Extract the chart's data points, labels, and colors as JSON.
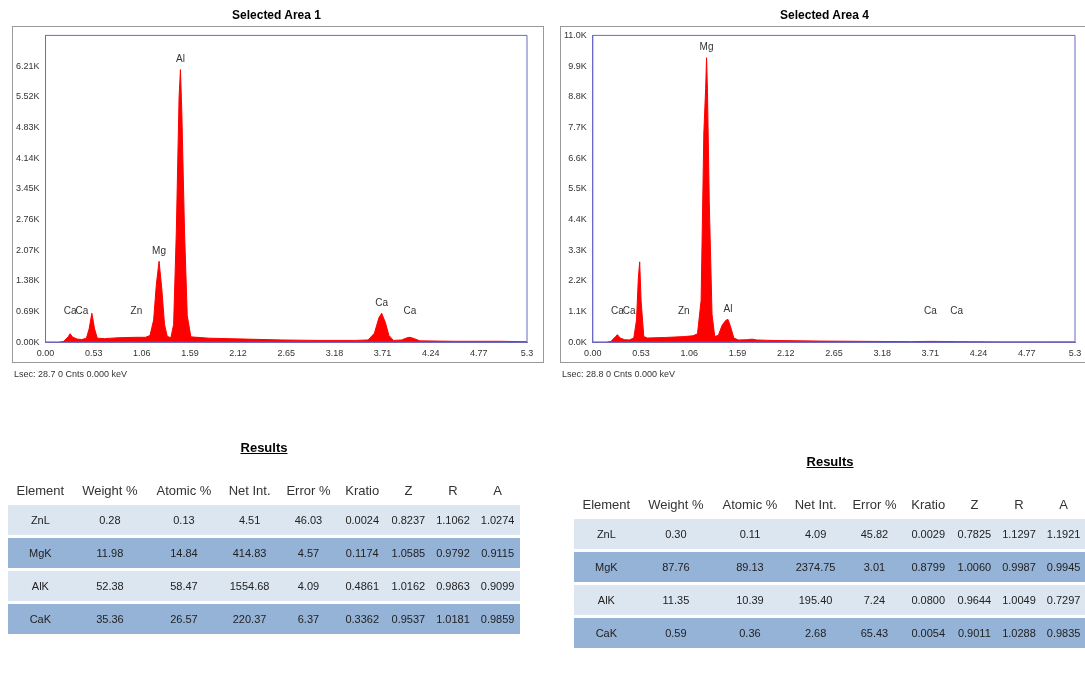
{
  "chart_data": [
    {
      "type": "area",
      "title": "Selected Area 1",
      "color": "#ff0000",
      "x": [
        0,
        0.15,
        0.2,
        0.25,
        0.27,
        0.3,
        0.35,
        0.4,
        0.45,
        0.48,
        0.51,
        0.54,
        0.57,
        0.65,
        0.8,
        1.0,
        1.1,
        1.15,
        1.19,
        1.22,
        1.25,
        1.28,
        1.31,
        1.34,
        1.38,
        1.41,
        1.44,
        1.47,
        1.485,
        1.5,
        1.53,
        1.56,
        1.6,
        1.8,
        2.2,
        2.6,
        3.0,
        3.4,
        3.55,
        3.62,
        3.67,
        3.7,
        3.74,
        3.78,
        3.83,
        3.92,
        3.98,
        4.01,
        4.06,
        4.12,
        4.5,
        5.0,
        5.3
      ],
      "values": [
        0,
        0,
        20,
        120,
        190,
        110,
        70,
        60,
        90,
        300,
        650,
        300,
        90,
        80,
        100,
        110,
        110,
        150,
        500,
        1300,
        1820,
        1200,
        400,
        130,
        100,
        400,
        2500,
        5500,
        6130,
        5200,
        2500,
        600,
        120,
        90,
        70,
        50,
        40,
        40,
        50,
        200,
        550,
        650,
        450,
        150,
        40,
        50,
        100,
        110,
        80,
        30,
        20,
        20,
        10
      ],
      "xlim": [
        0,
        5.3
      ],
      "xticks": [
        {
          "value": 0,
          "label": "0.00"
        },
        {
          "value": 0.53,
          "label": "0.53"
        },
        {
          "value": 1.06,
          "label": "1.06"
        },
        {
          "value": 1.59,
          "label": "1.59"
        },
        {
          "value": 2.12,
          "label": "2.12"
        },
        {
          "value": 2.65,
          "label": "2.65"
        },
        {
          "value": 3.18,
          "label": "3.18"
        },
        {
          "value": 3.71,
          "label": "3.71"
        },
        {
          "value": 4.24,
          "label": "4.24"
        },
        {
          "value": 4.77,
          "label": "4.77"
        },
        {
          "value": 5.3,
          "label": "5.3"
        }
      ],
      "ylim": [
        0,
        6900
      ],
      "yticks": [
        {
          "value": 0,
          "label": "0.00K"
        },
        {
          "value": 690,
          "label": "0.69K"
        },
        {
          "value": 1380,
          "label": "1.38K"
        },
        {
          "value": 2070,
          "label": "2.07K"
        },
        {
          "value": 2760,
          "label": "2.76K"
        },
        {
          "value": 3450,
          "label": "3.45K"
        },
        {
          "value": 4140,
          "label": "4.14K"
        },
        {
          "value": 4830,
          "label": "4.83K"
        },
        {
          "value": 5520,
          "label": "5.52K"
        },
        {
          "value": 6210,
          "label": "6.21K"
        }
      ],
      "annotations": [
        {
          "text": "Ca",
          "x": 0.27,
          "y": 190
        },
        {
          "text": "Ca",
          "x": 0.4,
          "y": 60
        },
        {
          "text": "Zn",
          "x": 1.0,
          "y": 110
        },
        {
          "text": "Mg",
          "x": 1.25,
          "y": 1820
        },
        {
          "text": "Al",
          "x": 1.485,
          "y": 6130
        },
        {
          "text": "Ca",
          "x": 3.7,
          "y": 650
        },
        {
          "text": "Ca",
          "x": 4.01,
          "y": 110
        },
        "Lsec: 28.7 0 Cnts  0.000 keV"
      ]
    },
    {
      "type": "area",
      "title": "Selected Area 4",
      "color": "#ff0000",
      "x": [
        0,
        0.15,
        0.2,
        0.25,
        0.27,
        0.3,
        0.35,
        0.4,
        0.45,
        0.48,
        0.5,
        0.515,
        0.53,
        0.56,
        0.6,
        0.8,
        1.0,
        1.1,
        1.15,
        1.19,
        1.22,
        1.24,
        1.25,
        1.26,
        1.28,
        1.31,
        1.34,
        1.38,
        1.42,
        1.46,
        1.485,
        1.51,
        1.55,
        1.6,
        1.7,
        1.75,
        1.8,
        2.0,
        2.5,
        3.0,
        3.5,
        3.71,
        4.0,
        4.5,
        5.0,
        5.3
      ],
      "values": [
        0,
        0,
        30,
        200,
        270,
        150,
        90,
        80,
        150,
        800,
        2300,
        2880,
        1500,
        200,
        150,
        170,
        200,
        230,
        300,
        1500,
        7500,
        9100,
        10200,
        9000,
        5000,
        1000,
        200,
        250,
        600,
        780,
        820,
        600,
        150,
        80,
        90,
        110,
        80,
        60,
        40,
        30,
        20,
        30,
        20,
        10,
        10,
        10
      ],
      "xlim": [
        0,
        5.3
      ],
      "xticks": [
        {
          "value": 0,
          "label": "0.00"
        },
        {
          "value": 0.53,
          "label": "0.53"
        },
        {
          "value": 1.06,
          "label": "1.06"
        },
        {
          "value": 1.59,
          "label": "1.59"
        },
        {
          "value": 2.12,
          "label": "2.12"
        },
        {
          "value": 2.65,
          "label": "2.65"
        },
        {
          "value": 3.18,
          "label": "3.18"
        },
        {
          "value": 3.71,
          "label": "3.71"
        },
        {
          "value": 4.24,
          "label": "4.24"
        },
        {
          "value": 4.77,
          "label": "4.77"
        },
        {
          "value": 5.3,
          "label": "5.3"
        }
      ],
      "ylim": [
        0,
        11000
      ],
      "yticks": [
        {
          "value": 0,
          "label": "0.0K"
        },
        {
          "value": 1100,
          "label": "1.1K"
        },
        {
          "value": 2200,
          "label": "2.2K"
        },
        {
          "value": 3300,
          "label": "3.3K"
        },
        {
          "value": 4400,
          "label": "4.4K"
        },
        {
          "value": 5500,
          "label": "5.5K"
        },
        {
          "value": 6600,
          "label": "6.6K"
        },
        {
          "value": 7700,
          "label": "7.7K"
        },
        {
          "value": 8800,
          "label": "8.8K"
        },
        {
          "value": 9900,
          "label": "9.9K"
        },
        {
          "value": 11000,
          "label": "11.0K"
        }
      ],
      "annotations": [
        {
          "text": "Ca",
          "x": 0.27,
          "y": 270
        },
        {
          "text": "Ca",
          "x": 0.4,
          "y": 80
        },
        {
          "text": "Zn",
          "x": 1.0,
          "y": 200
        },
        {
          "text": "Mg",
          "x": 1.25,
          "y": 10200
        },
        {
          "text": "Al",
          "x": 1.485,
          "y": 820
        },
        {
          "text": "Ca",
          "x": 3.71,
          "y": 30
        },
        {
          "text": "Ca",
          "x": 4.0,
          "y": 20
        },
        "Lsec: 28.8 0 Cnts  0.000 keV"
      ]
    },
    {
      "type": "other",
      "title": "Results",
      "categories": [
        "Element",
        "Weight %",
        "Atomic %",
        "Net Int.",
        "Error %",
        "Kratio",
        "Z",
        "R",
        "A"
      ],
      "annotations": [
        "ZnL",
        "0.28",
        "0.13",
        "4.51",
        "46.03",
        "0.0024",
        "0.8237",
        "1.1062",
        "1.0274",
        "MgK",
        "11.98",
        "14.84",
        "414.83",
        "4.57",
        "0.1174",
        "1.0585",
        "0.9792",
        "0.9115",
        "AlK",
        "52.38",
        "58.47",
        "1554.68",
        "4.09",
        "0.4861",
        "1.0162",
        "0.9863",
        "0.9099",
        "CaK",
        "35.36",
        "26.57",
        "220.37",
        "6.37",
        "0.3362",
        "0.9537",
        "1.0181",
        "0.9859"
      ]
    },
    {
      "type": "other",
      "title": "Results",
      "categories": [
        "Element",
        "Weight %",
        "Atomic %",
        "Net Int.",
        "Error %",
        "Kratio",
        "Z",
        "R",
        "A"
      ],
      "annotations": [
        "ZnL",
        "0.30",
        "0.11",
        "4.09",
        "45.82",
        "0.0029",
        "0.7825",
        "1.1297",
        "1.1921",
        "MgK",
        "87.76",
        "89.13",
        "2374.75",
        "3.01",
        "0.8799",
        "1.0060",
        "0.9987",
        "0.9945",
        "AlK",
        "11.35",
        "10.39",
        "195.40",
        "7.24",
        "0.0800",
        "0.9644",
        "1.0049",
        "0.7297",
        "CaK",
        "0.59",
        "0.36",
        "2.68",
        "65.43",
        "0.0054",
        "0.9011",
        "1.0288",
        "0.9835"
      ]
    }
  ]
}
